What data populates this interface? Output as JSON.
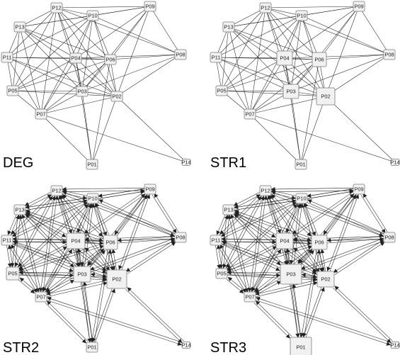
{
  "panels": [
    {
      "title": "DEG",
      "directed": false
    },
    {
      "title": "STR1",
      "directed": false
    },
    {
      "title": "STR2",
      "directed": true
    },
    {
      "title": "STR3",
      "directed": true
    }
  ],
  "nodes": [
    "P01",
    "P02",
    "P03",
    "P04",
    "P05",
    "P06",
    "P07",
    "P08",
    "P09",
    "P10",
    "P11",
    "P12",
    "P13",
    "P14"
  ],
  "edges": [
    [
      "P12",
      "P09"
    ],
    [
      "P12",
      "P10"
    ],
    [
      "P12",
      "P13"
    ],
    [
      "P12",
      "P11"
    ],
    [
      "P12",
      "P04"
    ],
    [
      "P12",
      "P06"
    ],
    [
      "P12",
      "P03"
    ],
    [
      "P12",
      "P02"
    ],
    [
      "P12",
      "P05"
    ],
    [
      "P12",
      "P07"
    ],
    [
      "P12",
      "P08"
    ],
    [
      "P10",
      "P09"
    ],
    [
      "P10",
      "P13"
    ],
    [
      "P10",
      "P11"
    ],
    [
      "P10",
      "P04"
    ],
    [
      "P10",
      "P06"
    ],
    [
      "P10",
      "P03"
    ],
    [
      "P10",
      "P02"
    ],
    [
      "P10",
      "P05"
    ],
    [
      "P10",
      "P07"
    ],
    [
      "P10",
      "P08"
    ],
    [
      "P09",
      "P13"
    ],
    [
      "P09",
      "P04"
    ],
    [
      "P09",
      "P06"
    ],
    [
      "P09",
      "P03"
    ],
    [
      "P09",
      "P02"
    ],
    [
      "P09",
      "P08"
    ],
    [
      "P13",
      "P11"
    ],
    [
      "P13",
      "P04"
    ],
    [
      "P13",
      "P06"
    ],
    [
      "P13",
      "P03"
    ],
    [
      "P13",
      "P05"
    ],
    [
      "P13",
      "P07"
    ],
    [
      "P13",
      "P02"
    ],
    [
      "P11",
      "P04"
    ],
    [
      "P11",
      "P06"
    ],
    [
      "P11",
      "P05"
    ],
    [
      "P11",
      "P07"
    ],
    [
      "P11",
      "P03"
    ],
    [
      "P11",
      "P02"
    ],
    [
      "P04",
      "P06"
    ],
    [
      "P04",
      "P03"
    ],
    [
      "P04",
      "P02"
    ],
    [
      "P04",
      "P05"
    ],
    [
      "P04",
      "P07"
    ],
    [
      "P04",
      "P08"
    ],
    [
      "P04",
      "P01"
    ],
    [
      "P06",
      "P08"
    ],
    [
      "P06",
      "P03"
    ],
    [
      "P06",
      "P02"
    ],
    [
      "P06",
      "P05"
    ],
    [
      "P06",
      "P07"
    ],
    [
      "P06",
      "P01"
    ],
    [
      "P03",
      "P02"
    ],
    [
      "P03",
      "P05"
    ],
    [
      "P03",
      "P07"
    ],
    [
      "P03",
      "P01"
    ],
    [
      "P03",
      "P08"
    ],
    [
      "P02",
      "P08"
    ],
    [
      "P02",
      "P07"
    ],
    [
      "P02",
      "P05"
    ],
    [
      "P02",
      "P01"
    ],
    [
      "P02",
      "P14"
    ],
    [
      "P05",
      "P07"
    ],
    [
      "P07",
      "P01"
    ],
    [
      "P07",
      "P14"
    ]
  ]
}
